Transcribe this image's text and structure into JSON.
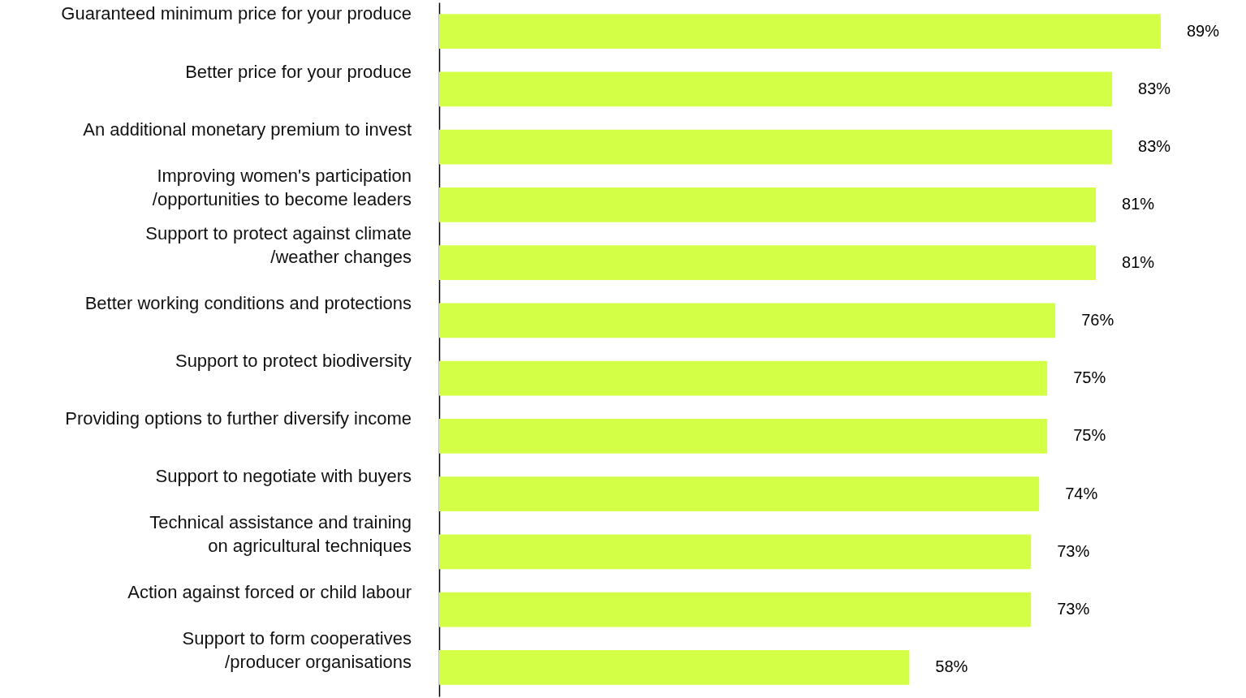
{
  "chart_data": {
    "type": "bar",
    "orientation": "horizontal",
    "categories": [
      "Guaranteed minimum price for your produce",
      "Better price for your produce",
      "An additional monetary premium to invest",
      "Improving women's participation\n/opportunities to become leaders",
      "Support to protect against climate\n/weather changes",
      "Better working conditions and protections",
      "Support to protect biodiversity",
      "Providing options to further diversify income",
      "Support to negotiate with buyers",
      "Technical assistance and training\non agricultural techniques",
      "Action against forced or child labour",
      "Support to form cooperatives\n/producer organisations"
    ],
    "values": [
      89,
      83,
      83,
      81,
      81,
      76,
      75,
      75,
      74,
      73,
      73,
      58
    ],
    "value_labels": [
      "89%",
      "83%",
      "83%",
      "81%",
      "81%",
      "76%",
      "75%",
      "75%",
      "74%",
      "73%",
      "73%",
      "58%"
    ],
    "color": "#d4ff47"
  }
}
